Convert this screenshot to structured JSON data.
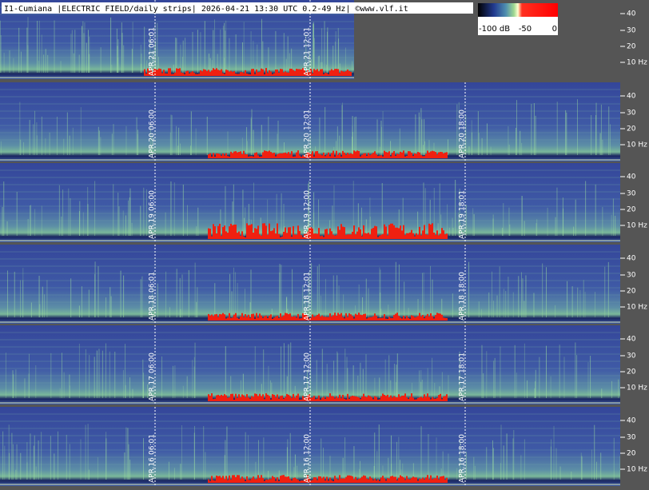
{
  "header": {
    "title": "I1-Cumiana |ELECTRIC FIELD/daily strips| 2026-04-21 13:30 UTC 0.2-49 Hz| ©www.vlf.it"
  },
  "colorbar": {
    "labels": [
      "-100 dB",
      "-50",
      "0"
    ]
  },
  "freq_ticks": [
    "40",
    "30",
    "20",
    "10 Hz"
  ],
  "strips": [
    {
      "date": "APR.21",
      "times": [
        "06:01",
        "12:01"
      ]
    },
    {
      "date": "APR.20",
      "times": [
        "06:00",
        "12:01",
        "18:00"
      ]
    },
    {
      "date": "APR.19",
      "times": [
        "06:00",
        "12:00",
        "18:01"
      ]
    },
    {
      "date": "APR.18",
      "times": [
        "06:01",
        "12:01",
        "18:00"
      ]
    },
    {
      "date": "APR.17",
      "times": [
        "06:00",
        "12:00",
        "18:01"
      ]
    },
    {
      "date": "APR.16",
      "times": [
        "06:01",
        "12:00",
        "18:00"
      ]
    }
  ]
}
